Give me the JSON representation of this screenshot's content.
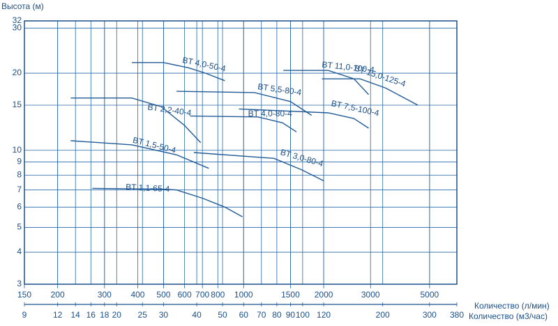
{
  "chart_data": {
    "type": "line",
    "y_label": "Высота (м)",
    "x_label": "Количество (л/мин)",
    "x2_label": "Количество (м3/час)",
    "log_x": true,
    "log_y": true,
    "grid": true,
    "color": "#1f5a96",
    "xlim": [
      150,
      6333
    ],
    "xticks": [
      150,
      200,
      300,
      400,
      500,
      600,
      700,
      800,
      1000,
      1500,
      2000,
      3000,
      5000
    ],
    "x2lim": [
      9,
      380
    ],
    "x2ticks": [
      9,
      12,
      14,
      16,
      18,
      20,
      25,
      30,
      40,
      50,
      60,
      70,
      80,
      90,
      100,
      120,
      200,
      300,
      380
    ],
    "ylim": [
      3,
      32
    ],
    "yticks": [
      3,
      4,
      5,
      6,
      7,
      8,
      9,
      10,
      15,
      20,
      30,
      32
    ],
    "series": [
      {
        "name": "BT 4,0-50-4",
        "x": [
          380,
          500,
          620,
          720,
          850
        ],
        "values": [
          22,
          22,
          21,
          20,
          18.7
        ]
      },
      {
        "name": "BT 2,2-40-4",
        "x": [
          224,
          380,
          490,
          600,
          690
        ],
        "values": [
          16,
          16,
          14.8,
          12.5,
          10.7
        ]
      },
      {
        "name": "BT 1,5-50-4",
        "x": [
          224,
          380,
          560,
          740
        ],
        "values": [
          10.9,
          10.5,
          9.6,
          8.5
        ]
      },
      {
        "name": "BT 1,1-65-4",
        "x": [
          270,
          500,
          560,
          700,
          850,
          990
        ],
        "values": [
          7.1,
          7.05,
          7,
          6.5,
          6,
          5.5
        ]
      },
      {
        "name": "BT 5,5-80-4",
        "x": [
          560,
          1100,
          1500,
          1800
        ],
        "values": [
          17,
          16.8,
          15.5,
          13.7
        ]
      },
      {
        "name": "BT 4,0-80-4",
        "x": [
          630,
          1130,
          1400,
          1580
        ],
        "values": [
          13.6,
          13.5,
          12.8,
          11.8
        ]
      },
      {
        "name": "BT 3,0-80-4",
        "x": [
          650,
          1300,
          1650,
          2000
        ],
        "values": [
          9.8,
          9.3,
          8.4,
          7.6
        ]
      },
      {
        "name": "BT 7,5-100-4",
        "x": [
          960,
          2080,
          2600,
          2950
        ],
        "values": [
          14.5,
          14,
          13.3,
          12.2
        ]
      },
      {
        "name": "BT 11,0-100-4",
        "x": [
          1410,
          2080,
          2600,
          2950
        ],
        "values": [
          20.5,
          20.5,
          19,
          16.5
        ]
      },
      {
        "name": "BT 15,0-125-4",
        "x": [
          1970,
          2740,
          3420,
          4520
        ],
        "values": [
          19,
          19,
          17.5,
          15
        ]
      }
    ]
  }
}
